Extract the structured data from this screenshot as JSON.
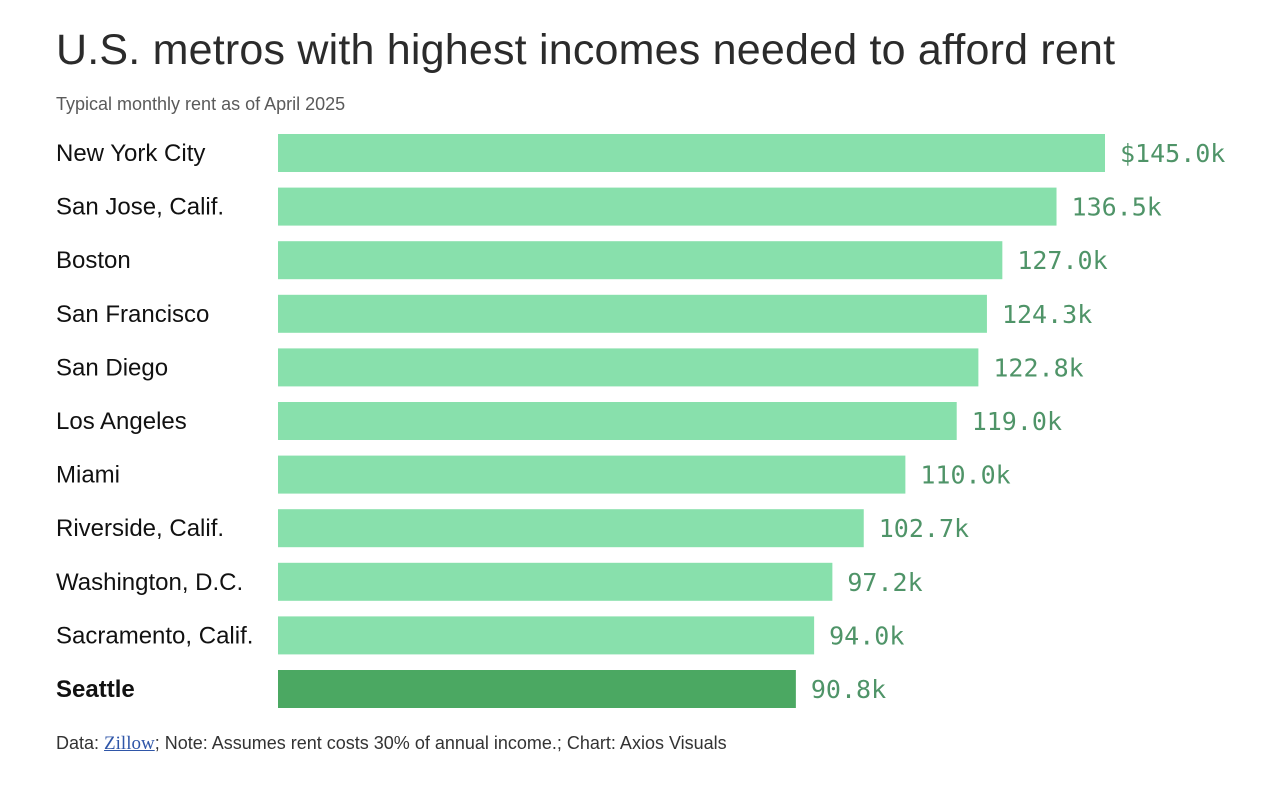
{
  "chart_data": {
    "type": "bar",
    "orientation": "horizontal",
    "title": "U.S. metros with highest incomes needed to afford rent",
    "subtitle": "Typical monthly rent as of April 2025",
    "xlabel": "",
    "ylabel": "",
    "unit": "thousand USD annual income",
    "xlim": [
      0,
      145.0
    ],
    "grid": false,
    "categories": [
      "New York City",
      "San Jose, Calif.",
      "Boston",
      "San Francisco",
      "San Diego",
      "Los Angeles",
      "Miami",
      "Riverside, Calif.",
      "Washington, D.C.",
      "Sacramento, Calif.",
      "Seattle"
    ],
    "values": [
      145.0,
      136.5,
      127.0,
      124.3,
      122.8,
      119.0,
      110.0,
      102.7,
      97.2,
      94.0,
      90.8
    ],
    "value_labels": [
      "$145.0k",
      "136.5k",
      "127.0k",
      "124.3k",
      "122.8k",
      "119.0k",
      "110.0k",
      "102.7k",
      "97.2k",
      "94.0k",
      "90.8k"
    ],
    "highlight": "Seattle",
    "colors": {
      "bar": "#88e0ac",
      "highlight_bar": "#4ba862",
      "value_text": "#4f9468"
    }
  },
  "footer": {
    "data_prefix": "Data: ",
    "source_link": "Zillow",
    "rest": "; Note: Assumes rent costs 30% of annual income.; Chart: Axios Visuals"
  }
}
